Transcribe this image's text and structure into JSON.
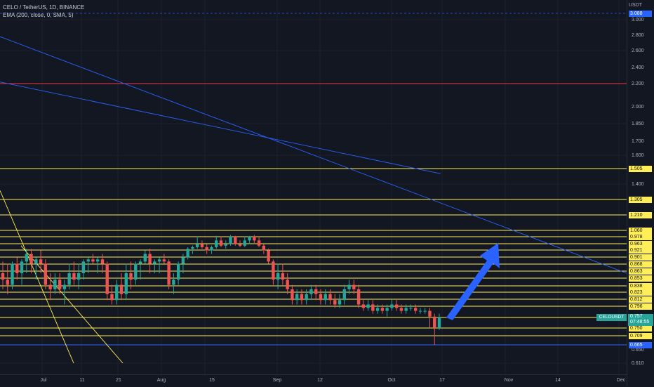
{
  "legend": {
    "symbol": "CELO / TetherUS, 1D, BINANCE",
    "indicator": "EMA (200, close, 0, SMA, 5)"
  },
  "price_axis": {
    "currency": "USDT",
    "ticks": [
      "3.000",
      "2.800",
      "2.600",
      "2.400",
      "2.200",
      "2.000",
      "1.850",
      "1.700",
      "1.600",
      "1.400",
      "1.060",
      "0.978",
      "0.963",
      "0.921",
      "0.901",
      "0.868",
      "0.863",
      "0.853",
      "0.838",
      "0.823",
      "0.812",
      "0.796",
      "0.757",
      "0.750",
      "0.709",
      "0.665",
      "0.650",
      "0.610"
    ],
    "badge_labels": [
      "3.088",
      "1.505",
      "1.305",
      "1.210",
      "1.060",
      "0.978",
      "0.963",
      "0.921",
      "0.901",
      "0.868",
      "0.863",
      "0.853",
      "0.838",
      "0.823",
      "0.812",
      "0.796",
      "0.750",
      "0.709",
      "0.665"
    ]
  },
  "time_axis": {
    "labels": [
      "Jul",
      "11",
      "21",
      "Aug",
      "15",
      "Sep",
      "12",
      "Oct",
      "17",
      "Nov",
      "14",
      "Dec"
    ]
  },
  "last_price": {
    "symbol": "CELOUSDT",
    "price": "0.757",
    "countdown": "07:48:55"
  },
  "colors": {
    "background": "#131722",
    "up": "#26a69a",
    "down": "#ef5350",
    "level": "#ffee58",
    "trendline": "#2962ff",
    "resistance": "#f23645"
  },
  "chart_data": {
    "type": "candlestick",
    "symbol": "CELOUSDT",
    "price_levels": [
      3.088,
      2.2,
      1.505,
      1.305,
      1.21,
      1.06,
      0.978,
      0.963,
      0.921,
      0.901,
      0.868,
      0.863,
      0.853,
      0.838,
      0.823,
      0.812,
      0.796,
      0.757,
      0.75,
      0.709,
      0.665
    ],
    "candles": [
      [
        0.86,
        0.88,
        0.83,
        0.85
      ],
      [
        0.85,
        0.87,
        0.82,
        0.84
      ],
      [
        0.84,
        0.88,
        0.83,
        0.87
      ],
      [
        0.87,
        0.9,
        0.85,
        0.86
      ],
      [
        0.86,
        0.89,
        0.84,
        0.88
      ],
      [
        0.88,
        0.93,
        0.86,
        0.91
      ],
      [
        0.91,
        0.93,
        0.86,
        0.87
      ],
      [
        0.87,
        0.9,
        0.85,
        0.89
      ],
      [
        0.89,
        0.92,
        0.86,
        0.87
      ],
      [
        0.87,
        0.89,
        0.83,
        0.84
      ],
      [
        0.84,
        0.86,
        0.81,
        0.83
      ],
      [
        0.83,
        0.86,
        0.82,
        0.85
      ],
      [
        0.85,
        0.86,
        0.82,
        0.83
      ],
      [
        0.83,
        0.85,
        0.8,
        0.84
      ],
      [
        0.84,
        0.87,
        0.83,
        0.86
      ],
      [
        0.86,
        0.88,
        0.84,
        0.85
      ],
      [
        0.85,
        0.87,
        0.83,
        0.86
      ],
      [
        0.86,
        0.89,
        0.85,
        0.88
      ],
      [
        0.88,
        0.9,
        0.86,
        0.89
      ],
      [
        0.89,
        0.91,
        0.87,
        0.88
      ],
      [
        0.88,
        0.9,
        0.86,
        0.89
      ],
      [
        0.89,
        0.91,
        0.86,
        0.87
      ],
      [
        0.87,
        0.88,
        0.81,
        0.82
      ],
      [
        0.82,
        0.84,
        0.8,
        0.81
      ],
      [
        0.81,
        0.85,
        0.8,
        0.84
      ],
      [
        0.84,
        0.86,
        0.81,
        0.82
      ],
      [
        0.82,
        0.87,
        0.81,
        0.86
      ],
      [
        0.86,
        0.88,
        0.83,
        0.85
      ],
      [
        0.85,
        0.88,
        0.84,
        0.87
      ],
      [
        0.87,
        0.89,
        0.85,
        0.88
      ],
      [
        0.88,
        0.92,
        0.87,
        0.91
      ],
      [
        0.91,
        0.93,
        0.86,
        0.87
      ],
      [
        0.87,
        0.89,
        0.86,
        0.88
      ],
      [
        0.88,
        0.9,
        0.86,
        0.89
      ],
      [
        0.89,
        0.91,
        0.87,
        0.88
      ],
      [
        0.88,
        0.89,
        0.83,
        0.84
      ],
      [
        0.84,
        0.86,
        0.82,
        0.85
      ],
      [
        0.85,
        0.88,
        0.84,
        0.87
      ],
      [
        0.87,
        0.91,
        0.86,
        0.9
      ],
      [
        0.9,
        0.94,
        0.89,
        0.93
      ],
      [
        0.93,
        0.95,
        0.91,
        0.94
      ],
      [
        0.94,
        0.98,
        0.93,
        0.96
      ],
      [
        0.96,
        0.97,
        0.93,
        0.94
      ],
      [
        0.94,
        0.96,
        0.91,
        0.92
      ],
      [
        0.92,
        0.95,
        0.91,
        0.94
      ],
      [
        0.94,
        0.99,
        0.93,
        0.97
      ],
      [
        0.97,
        0.98,
        0.94,
        0.95
      ],
      [
        0.95,
        0.97,
        0.93,
        0.96
      ],
      [
        0.96,
        1.0,
        0.95,
        0.98
      ],
      [
        0.98,
        0.99,
        0.95,
        0.96
      ],
      [
        0.96,
        0.97,
        0.94,
        0.95
      ],
      [
        0.95,
        0.98,
        0.94,
        0.97
      ],
      [
        0.97,
        0.99,
        0.96,
        0.98
      ],
      [
        0.98,
        1.0,
        0.96,
        0.97
      ],
      [
        0.97,
        0.98,
        0.94,
        0.95
      ],
      [
        0.95,
        0.96,
        0.91,
        0.92
      ],
      [
        0.92,
        0.93,
        0.87,
        0.88
      ],
      [
        0.88,
        0.89,
        0.84,
        0.85
      ],
      [
        0.85,
        0.87,
        0.83,
        0.86
      ],
      [
        0.86,
        0.87,
        0.84,
        0.85
      ],
      [
        0.85,
        0.86,
        0.82,
        0.83
      ],
      [
        0.83,
        0.84,
        0.8,
        0.81
      ],
      [
        0.81,
        0.83,
        0.8,
        0.82
      ],
      [
        0.82,
        0.83,
        0.8,
        0.81
      ],
      [
        0.81,
        0.83,
        0.8,
        0.82
      ],
      [
        0.82,
        0.84,
        0.81,
        0.83
      ],
      [
        0.83,
        0.84,
        0.81,
        0.82
      ],
      [
        0.82,
        0.83,
        0.8,
        0.81
      ],
      [
        0.81,
        0.83,
        0.8,
        0.82
      ],
      [
        0.82,
        0.83,
        0.8,
        0.81
      ],
      [
        0.81,
        0.82,
        0.79,
        0.8
      ],
      [
        0.8,
        0.82,
        0.79,
        0.81
      ],
      [
        0.81,
        0.84,
        0.8,
        0.83
      ],
      [
        0.83,
        0.85,
        0.82,
        0.84
      ],
      [
        0.84,
        0.85,
        0.82,
        0.83
      ],
      [
        0.83,
        0.84,
        0.79,
        0.8
      ],
      [
        0.8,
        0.81,
        0.78,
        0.79
      ],
      [
        0.79,
        0.81,
        0.78,
        0.8
      ],
      [
        0.8,
        0.81,
        0.77,
        0.78
      ],
      [
        0.78,
        0.8,
        0.77,
        0.79
      ],
      [
        0.79,
        0.8,
        0.77,
        0.78
      ],
      [
        0.78,
        0.8,
        0.76,
        0.79
      ],
      [
        0.79,
        0.81,
        0.78,
        0.8
      ],
      [
        0.8,
        0.81,
        0.78,
        0.79
      ],
      [
        0.79,
        0.8,
        0.77,
        0.78
      ],
      [
        0.78,
        0.8,
        0.77,
        0.79
      ],
      [
        0.79,
        0.8,
        0.78,
        0.79
      ],
      [
        0.79,
        0.8,
        0.77,
        0.78
      ],
      [
        0.78,
        0.79,
        0.77,
        0.78
      ],
      [
        0.78,
        0.79,
        0.77,
        0.78
      ],
      [
        0.78,
        0.79,
        0.75,
        0.76
      ],
      [
        0.76,
        0.77,
        0.665,
        0.75
      ],
      [
        0.75,
        0.77,
        0.74,
        0.757
      ]
    ],
    "trendlines": [
      {
        "color": "blue",
        "from": [
          0,
          2.78
        ],
        "to": [
          893,
          0.86
        ]
      },
      {
        "color": "blue",
        "from": [
          0,
          2.22
        ],
        "to": [
          628,
          1.47
        ]
      },
      {
        "color": "yellow",
        "from": [
          0,
          1.36
        ],
        "to": [
          105,
          0.61
        ]
      },
      {
        "color": "yellow",
        "from": [
          30,
          0.95
        ],
        "to": [
          175,
          0.61
        ]
      }
    ],
    "annotations": [
      {
        "type": "arrow",
        "color": "#2962ff",
        "direction": "up-right"
      }
    ]
  }
}
